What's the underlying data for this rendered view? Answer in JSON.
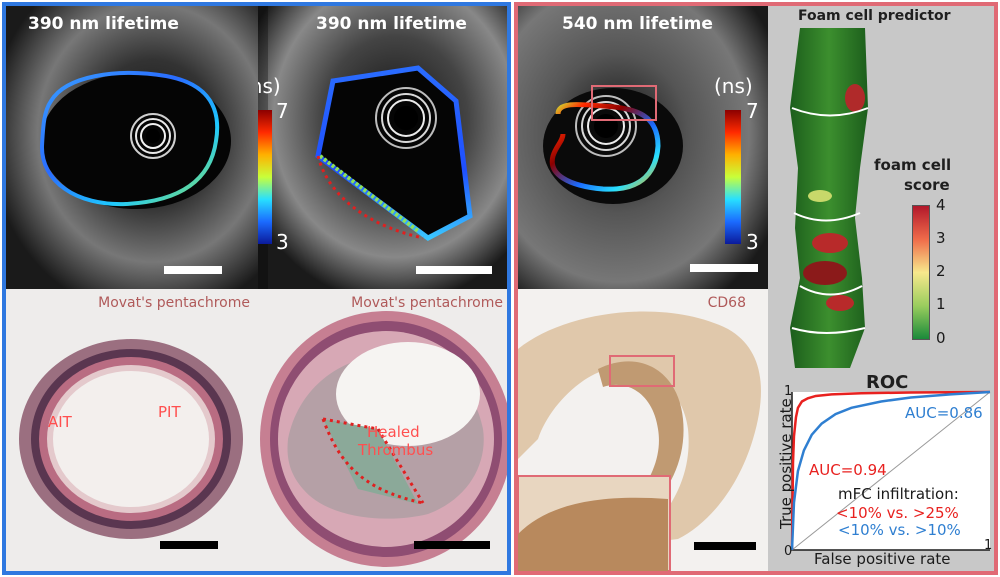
{
  "colors": {
    "left_border": "#2f78e0",
    "right_border": "#e06a75",
    "scalebar_light": "#ffffff",
    "scalebar_dark": "#000000",
    "annotation_red": "#ff4f4f",
    "stain_label": "#b05a5a",
    "roc_red": "#e8211f",
    "roc_blue": "#2f7fd1"
  },
  "left_panel": {
    "oct_a": {
      "title": "390 nm lifetime"
    },
    "oct_b": {
      "title": "390 nm lifetime"
    },
    "colorbar": {
      "unit": "(ns)",
      "max": "7",
      "min": "3"
    },
    "histo_a": {
      "stain": "Movat's pentachrome",
      "label_1": "AIT",
      "label_2": "PIT"
    },
    "histo_b": {
      "stain": "Movat's pentachrome",
      "label_1": "Healed",
      "label_2": "Thrombus"
    }
  },
  "right_panel": {
    "oct_c": {
      "title": "540 nm lifetime"
    },
    "colorbar": {
      "unit": "(ns)",
      "max": "7",
      "min": "3"
    },
    "histo_c": {
      "stain": "CD68"
    },
    "predictor": {
      "title": "Foam cell predictor",
      "score_label_1": "foam cell",
      "score_label_2": "score",
      "ticks": [
        "4",
        "3",
        "2",
        "1",
        "0"
      ]
    }
  },
  "chart_data": {
    "type": "line",
    "title": "ROC",
    "xlabel": "False positive rate",
    "ylabel": "True positive rate",
    "xlim": [
      0,
      1
    ],
    "ylim": [
      0,
      1
    ],
    "x_ticks": [
      "0",
      "1"
    ],
    "y_ticks": [
      "0",
      "1"
    ],
    "series": [
      {
        "name": "<10%  vs.  >25%",
        "auc_label": "AUC=0.94",
        "color": "#e8211f",
        "x": [
          0,
          0.005,
          0.01,
          0.02,
          0.03,
          0.05,
          0.08,
          0.12,
          0.2,
          0.35,
          0.6,
          1
        ],
        "y": [
          0,
          0.55,
          0.72,
          0.84,
          0.9,
          0.94,
          0.96,
          0.975,
          0.985,
          0.992,
          0.997,
          1
        ]
      },
      {
        "name": "<10%  vs. >10%",
        "auc_label": "AUC=0.86",
        "color": "#2f7fd1",
        "x": [
          0,
          0.01,
          0.03,
          0.06,
          0.1,
          0.15,
          0.22,
          0.3,
          0.45,
          0.6,
          0.8,
          1
        ],
        "y": [
          0,
          0.3,
          0.5,
          0.63,
          0.73,
          0.8,
          0.86,
          0.9,
          0.94,
          0.965,
          0.985,
          1
        ]
      }
    ],
    "reference_line": true,
    "legend_title": "mFC infiltration:"
  }
}
